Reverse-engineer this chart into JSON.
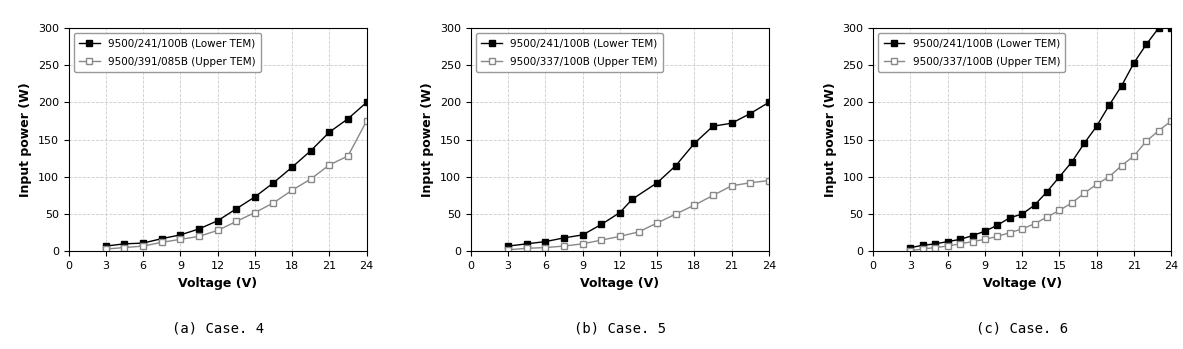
{
  "cases": [
    {
      "title": "(a) Case. 4",
      "legend1": "9500/241/100B (Lower TEM)",
      "legend2": "9500/391/085B (Upper TEM)",
      "lower_x": [
        3,
        4.5,
        6,
        7.5,
        9,
        10.5,
        12,
        13.5,
        15,
        16.5,
        18,
        19.5,
        21,
        22.5,
        24
      ],
      "lower_y": [
        7,
        10,
        11,
        17,
        22,
        30,
        41,
        57,
        73,
        92,
        113,
        135,
        160,
        178,
        200
      ],
      "upper_x": [
        3,
        4.5,
        6,
        7.5,
        9,
        10.5,
        12,
        13.5,
        15,
        16.5,
        18,
        19.5,
        21,
        22.5,
        24
      ],
      "upper_y": [
        3,
        5,
        7,
        12,
        16,
        20,
        28,
        40,
        52,
        65,
        82,
        97,
        116,
        128,
        175
      ]
    },
    {
      "title": "(b) Case. 5",
      "legend1": "9500/241/100B (Lower TEM)",
      "legend2": "9500/337/100B (Upper TEM)",
      "lower_x": [
        3,
        4.5,
        6,
        7.5,
        9,
        10.5,
        12,
        13,
        15,
        16.5,
        18,
        19.5,
        21,
        22.5,
        24
      ],
      "lower_y": [
        7,
        10,
        13,
        18,
        22,
        36,
        52,
        70,
        92,
        115,
        145,
        168,
        172,
        185,
        200
      ],
      "upper_x": [
        3,
        4.5,
        6,
        7.5,
        9,
        10.5,
        12,
        13.5,
        15,
        16.5,
        18,
        19.5,
        21,
        22.5,
        24
      ],
      "upper_y": [
        2,
        4,
        5,
        7,
        10,
        15,
        20,
        26,
        38,
        50,
        62,
        75,
        88,
        92,
        95
      ]
    },
    {
      "title": "(c) Case. 6",
      "legend1": "9500/241/100B (Lower TEM)",
      "legend2": "9500/337/100B (Upper TEM)",
      "lower_x": [
        3,
        4,
        5,
        6,
        7,
        8,
        9,
        10,
        11,
        12,
        13,
        14,
        15,
        16,
        17,
        18,
        19,
        20,
        21,
        22,
        23,
        24
      ],
      "lower_y": [
        5,
        8,
        10,
        13,
        16,
        21,
        27,
        35,
        45,
        50,
        62,
        80,
        100,
        120,
        145,
        168,
        196,
        222,
        253,
        278,
        300,
        300
      ],
      "upper_x": [
        3,
        4,
        5,
        6,
        7,
        8,
        9,
        10,
        11,
        12,
        13,
        14,
        15,
        16,
        17,
        18,
        19,
        20,
        21,
        22,
        23,
        24
      ],
      "upper_y": [
        1,
        3,
        5,
        7,
        10,
        13,
        16,
        20,
        25,
        30,
        37,
        46,
        55,
        65,
        78,
        90,
        100,
        115,
        128,
        148,
        162,
        175
      ]
    }
  ],
  "xlabel": "Voltage (V)",
  "ylabel": "Input power (W)",
  "xlim": [
    0,
    24
  ],
  "ylim": [
    0,
    300
  ],
  "xticks": [
    0,
    3,
    6,
    9,
    12,
    15,
    18,
    21,
    24
  ],
  "yticks": [
    0,
    50,
    100,
    150,
    200,
    250,
    300
  ],
  "line_color_lower": "#000000",
  "line_color_upper": "#888888",
  "marker_size": 5,
  "grid_color": "#cccccc",
  "grid_linestyle": "--",
  "bg_color": "#ffffff",
  "caption_fontsize": 10,
  "label_fontsize": 9,
  "tick_fontsize": 8,
  "legend_fontsize": 7.5
}
